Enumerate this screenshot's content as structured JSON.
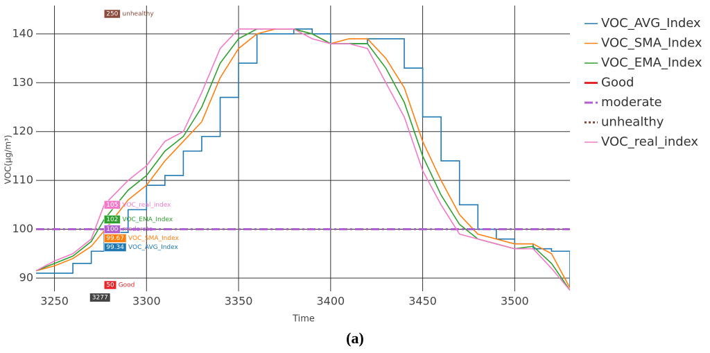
{
  "chart_data": {
    "type": "line",
    "x_label": "Time",
    "y_label": "VOC(μg/m³)",
    "caption": "(a)",
    "x": [
      3240,
      3250,
      3260,
      3270,
      3277,
      3290,
      3300,
      3310,
      3320,
      3330,
      3340,
      3350,
      3360,
      3370,
      3380,
      3390,
      3400,
      3410,
      3420,
      3430,
      3440,
      3450,
      3460,
      3470,
      3480,
      3490,
      3500,
      3510,
      3520,
      3530
    ],
    "series": [
      {
        "name": "VOC_AVG_Index",
        "color": "#1f78b4",
        "dash": "solid",
        "shape": "step",
        "values": [
          91,
          91,
          93,
          95.5,
          99.34,
          104,
          109,
          111,
          116,
          119,
          127,
          134,
          140,
          140,
          141,
          140,
          138,
          138,
          139,
          139,
          133,
          123,
          114,
          105,
          100,
          98,
          97,
          96,
          95.5,
          88
        ]
      },
      {
        "name": "VOC_SMA_Index",
        "color": "#ff7f0e",
        "dash": "solid",
        "shape": "linear",
        "values": [
          91.5,
          92.5,
          94,
          96.5,
          99.67,
          106,
          109,
          114,
          118,
          122,
          131,
          137,
          140,
          141,
          141,
          140,
          138,
          139,
          139,
          135,
          129,
          118,
          110,
          103,
          99,
          98,
          97,
          97,
          95,
          88
        ]
      },
      {
        "name": "VOC_EMA_Index",
        "color": "#2ca02c",
        "dash": "solid",
        "shape": "linear",
        "values": [
          91.5,
          93,
          94.5,
          97.5,
          102,
          108,
          111,
          116,
          119,
          125,
          134,
          139,
          141,
          141,
          141,
          140,
          138,
          138,
          138,
          133,
          126,
          115,
          107,
          101,
          98,
          97,
          96,
          96.5,
          93,
          87.5
        ]
      },
      {
        "name": "Good",
        "color": "#e8262a",
        "dash": "solid",
        "level": 50
      },
      {
        "name": "moderate",
        "color": "#b25fd0",
        "dash": "dashdot",
        "level": 100
      },
      {
        "name": "unhealthy",
        "color": "#8c4a3c",
        "dash": "dot",
        "level": 250
      },
      {
        "name": "VOC_real_index",
        "color": "#f27ac8",
        "dash": "solid",
        "shape": "linear",
        "values": [
          91.5,
          93.5,
          95,
          98,
          105,
          110,
          113,
          118,
          120,
          128,
          137,
          141,
          141,
          141,
          141,
          139,
          138,
          138,
          137,
          130,
          123,
          112,
          105,
          99,
          98,
          97,
          96,
          96,
          92,
          87.5
        ]
      }
    ],
    "hover": {
      "x": 3277,
      "items": [
        {
          "value": 250,
          "name": "unhealthy",
          "series": 5
        },
        {
          "value": 105,
          "name": "VOC_real_index",
          "series": 6
        },
        {
          "value": 102,
          "name": "VOC_EMA_Index",
          "series": 2
        },
        {
          "value": 100,
          "name": "moderate",
          "series": 4
        },
        {
          "value": 99.67,
          "name": "VOC_SMA_Index",
          "series": 1
        },
        {
          "value": 99.34,
          "name": "VOC_AVG_Index",
          "series": 0
        },
        {
          "value": 50,
          "name": "Good",
          "series": 3
        }
      ]
    },
    "xlim": [
      3240,
      3530
    ],
    "ylim": [
      87.3,
      145.8
    ],
    "xticks": [
      3250,
      3300,
      3350,
      3400,
      3450,
      3500
    ],
    "yticks": [
      90,
      100,
      110,
      120,
      130,
      140
    ],
    "grid": true
  }
}
